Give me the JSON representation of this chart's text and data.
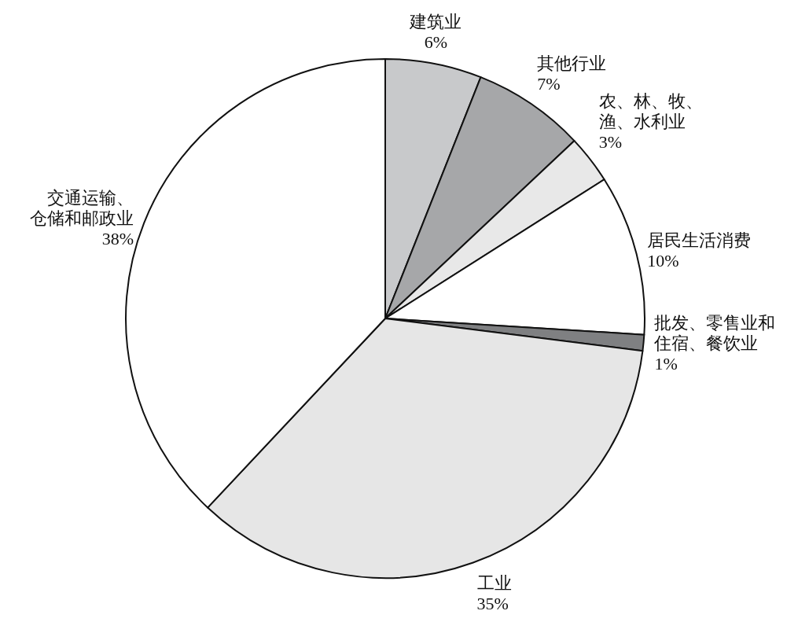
{
  "chart_data": {
    "type": "pie",
    "categories": [
      "建筑业",
      "其他行业",
      "农、林、牧、渔、水利业",
      "居民生活消费",
      "批发、零售业和住宿、餐饮业",
      "工业",
      "交通运输、仓储和邮政业"
    ],
    "values": [
      6,
      7,
      3,
      10,
      1,
      35,
      38
    ],
    "colors": [
      "#c8c9cb",
      "#a6a7a9",
      "#e8e8e8",
      "#ffffff",
      "#7f8082",
      "#e6e6e6",
      "#ffffff"
    ],
    "value_labels": [
      "6%",
      "7%",
      "3%",
      "10%",
      "1%",
      "35%",
      "38%"
    ]
  }
}
